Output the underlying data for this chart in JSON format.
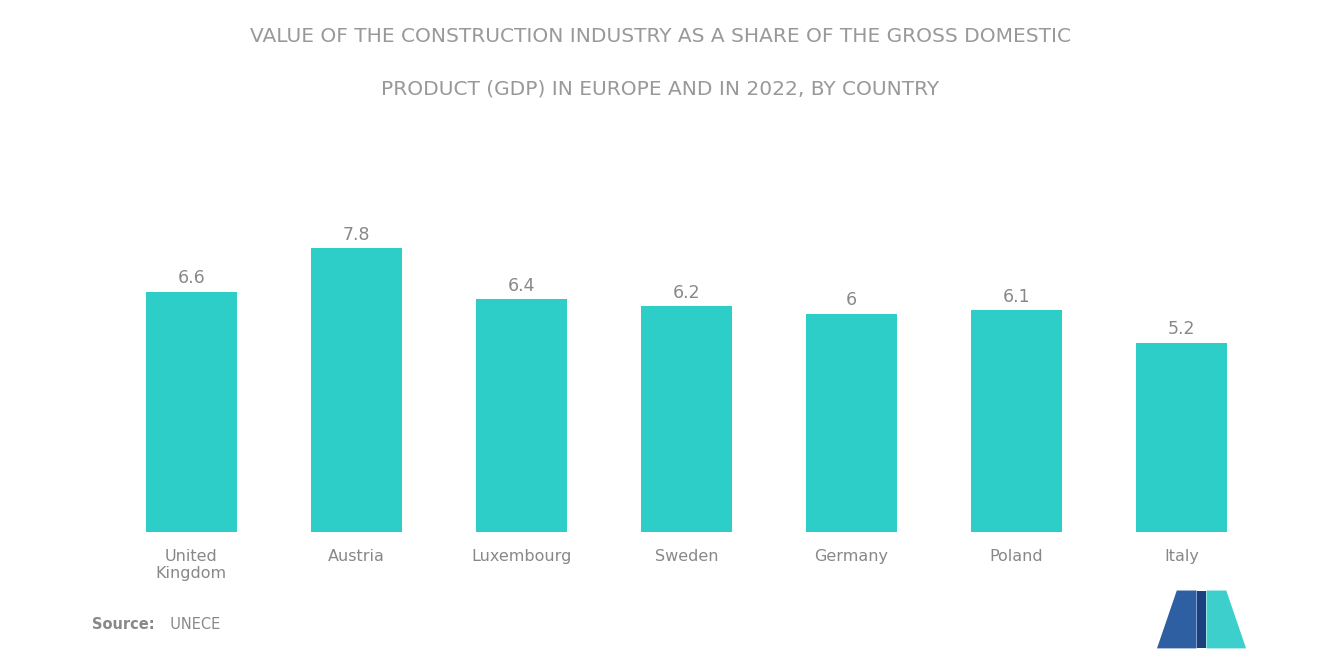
{
  "title_line1": "VALUE OF THE CONSTRUCTION INDUSTRY AS A SHARE OF THE GROSS DOMESTIC",
  "title_line2": "PRODUCT (GDP) IN EUROPE AND IN 2022, BY COUNTRY",
  "categories": [
    "United\nKingdom",
    "Austria",
    "Luxembourg",
    "Sweden",
    "Germany",
    "Poland",
    "Italy"
  ],
  "values": [
    6.6,
    7.8,
    6.4,
    6.2,
    6.0,
    6.1,
    5.2
  ],
  "bar_color": "#2ECEC8",
  "background_color": "#FFFFFF",
  "title_color": "#999999",
  "label_color": "#888888",
  "tick_color": "#888888",
  "source_bold": "Source:",
  "source_normal": "  UNECE",
  "ylim": [
    0,
    9.5
  ],
  "bar_width": 0.55,
  "title_fontsize": 14.5,
  "label_fontsize": 12.5,
  "tick_fontsize": 11.5,
  "logo_color_left": "#2E5FA3",
  "logo_color_right": "#3DCFCB",
  "logo_color_mid": "#1A4080"
}
